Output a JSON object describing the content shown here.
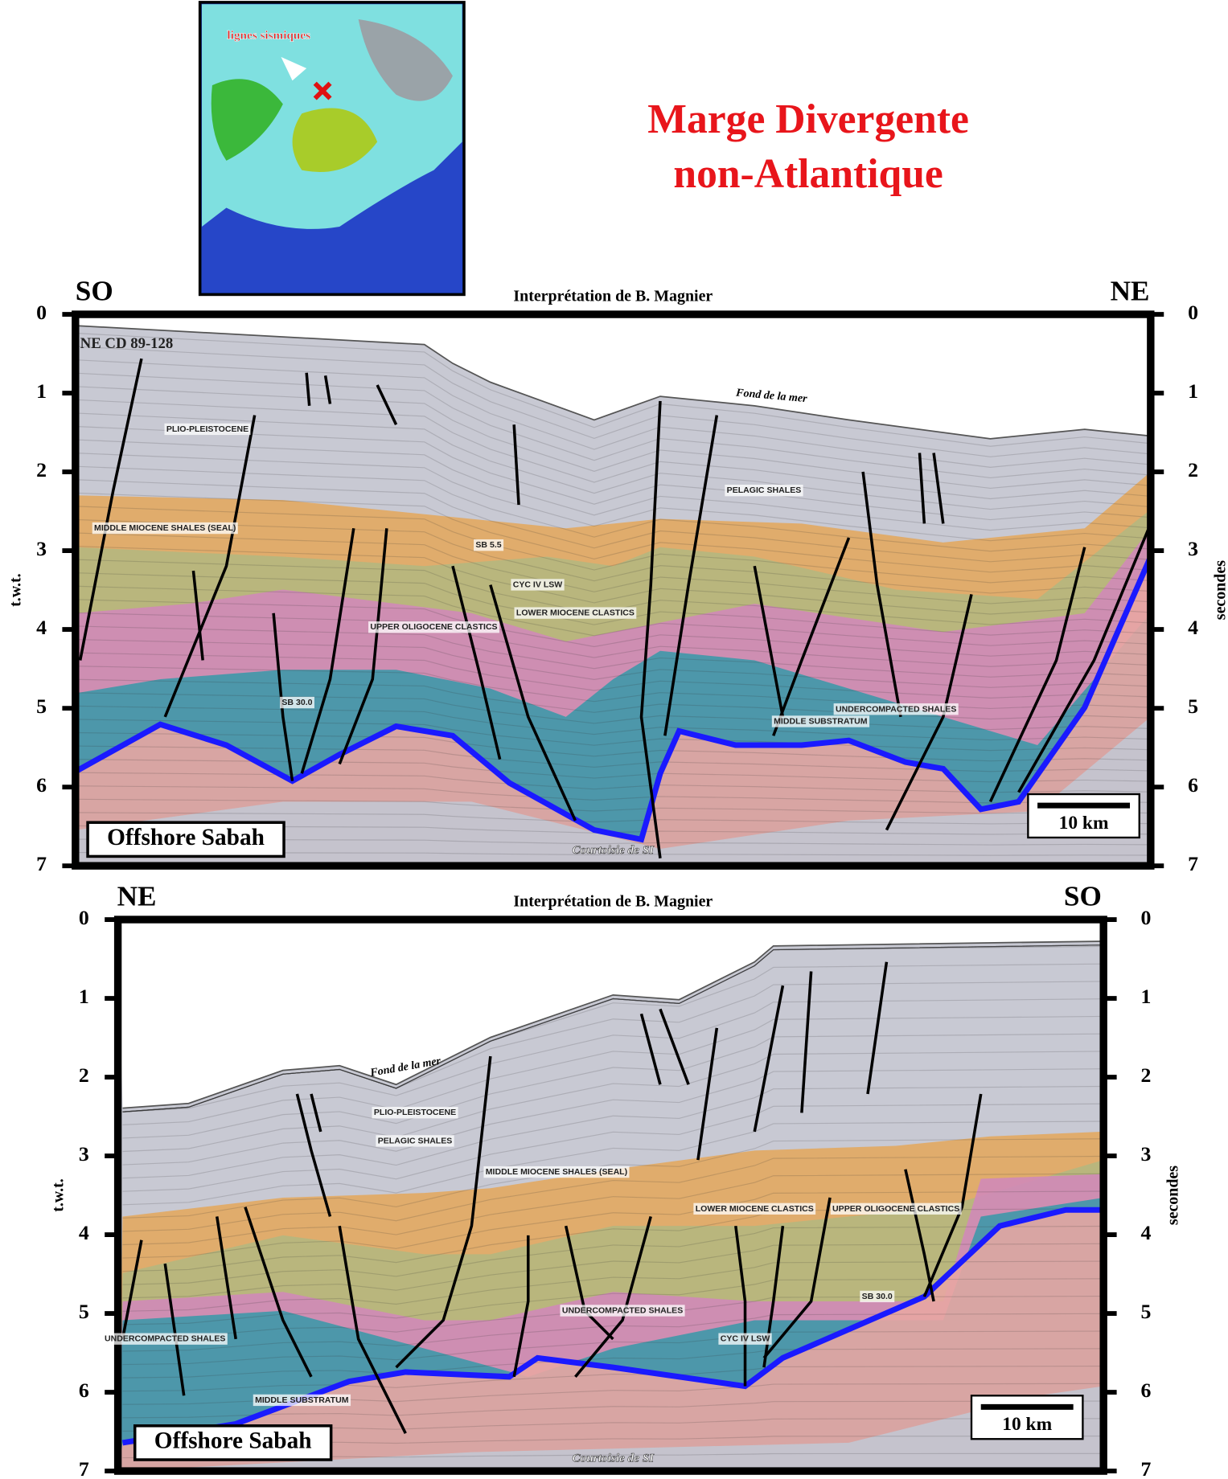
{
  "header": {
    "title_lines": [
      "Marge Divergente",
      "non-Atlantique"
    ]
  },
  "map": {
    "label": "lignes sismiques"
  },
  "panels": [
    {
      "left_direction": "SO",
      "right_direction": "NE",
      "interpretation": "Interprétation de B. Magnier",
      "left_axis_label": "t.w.t.",
      "right_axis_label": "secondes",
      "ticks": [
        0,
        1,
        2,
        3,
        4,
        5,
        6,
        7
      ],
      "location": "Offshore Sabah",
      "scale": "10 km",
      "credit": "Courtoisie de SI",
      "seafloor_label": "Fond de la mer",
      "line_id": "NE CD 89-128",
      "units": [
        "PLIO-PLEISTOCENE",
        "MIDDLE MIOCENE SHALES (SEAL)",
        "UPPER OLIGOCENE CLASTICS",
        "LOWER MIOCENE CLASTICS",
        "PELAGIC SHALES",
        "UNDERCOMPACTED SHALES",
        "MIDDLE SUBSTRATUM",
        "SB 30.0",
        "CYC IV LSW",
        "SB 5.5"
      ]
    },
    {
      "left_direction": "NE",
      "right_direction": "SO",
      "interpretation": "Interprétation de B. Magnier",
      "left_axis_label": "t.w.t.",
      "right_axis_label": "secondes",
      "ticks": [
        0,
        1,
        2,
        3,
        4,
        5,
        6,
        7
      ],
      "location": "Offshore Sabah",
      "scale": "10 km",
      "credit": "Courtoisie de SI",
      "seafloor_label": "Fond de la mer",
      "units": [
        "PLIO-PLEISTOCENE",
        "PELAGIC SHALES",
        "MIDDLE MIOCENE SHALES (SEAL)",
        "LOWER MIOCENE CLASTICS",
        "UPPER OLIGOCENE CLASTICS",
        "UNDERCOMPACTED SHALES",
        "UNDERCOMPACTED SHALES",
        "MIDDLE SUBSTRATUM",
        "SB 30.0",
        "CYC IV LSW"
      ]
    }
  ]
}
